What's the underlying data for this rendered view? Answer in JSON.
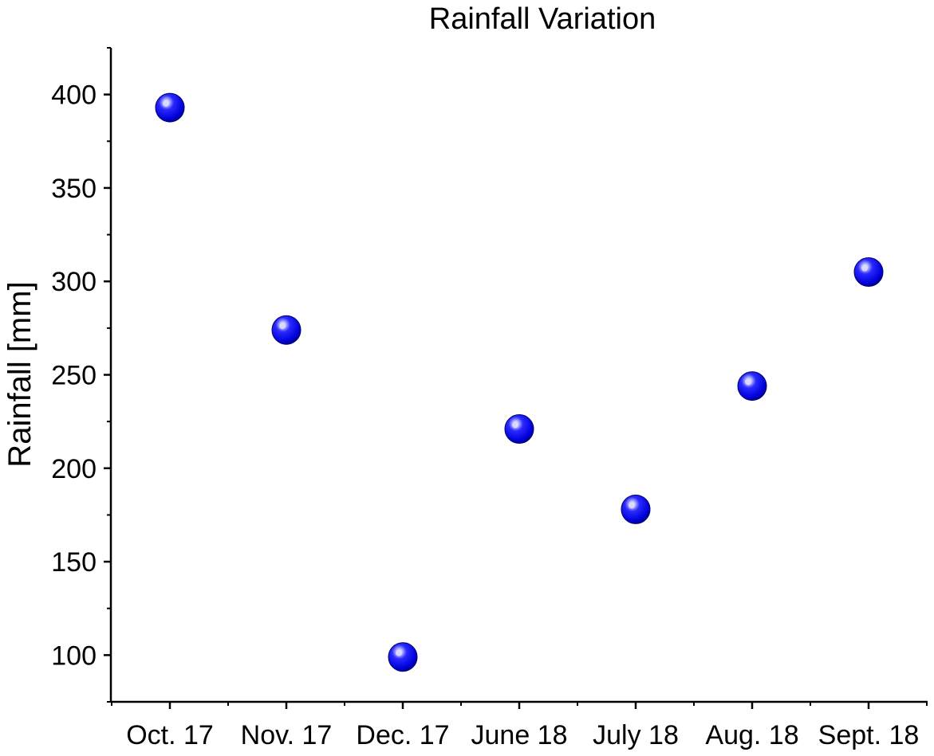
{
  "chart_data": {
    "type": "scatter",
    "title": "Rainfall Variation",
    "xlabel": "",
    "ylabel": "Rainfall [mm]",
    "categories": [
      "Oct. 17",
      "Nov. 17",
      "Dec. 17",
      "June 18",
      "July 18",
      "Aug. 18",
      "Sept. 18"
    ],
    "series": [
      {
        "name": "Rainfall",
        "values": [
          393,
          274,
          99,
          221,
          178,
          244,
          305
        ]
      }
    ],
    "ylim": [
      75,
      425
    ],
    "yticks": [
      100,
      150,
      200,
      250,
      300,
      350,
      400
    ],
    "ytick_labels": [
      "100",
      "150",
      "200",
      "250",
      "300",
      "350",
      "400"
    ],
    "grid": false,
    "marker_color": "#0a0ae6",
    "marker_highlight": "#d8d8ff",
    "axis_color": "#000000"
  }
}
